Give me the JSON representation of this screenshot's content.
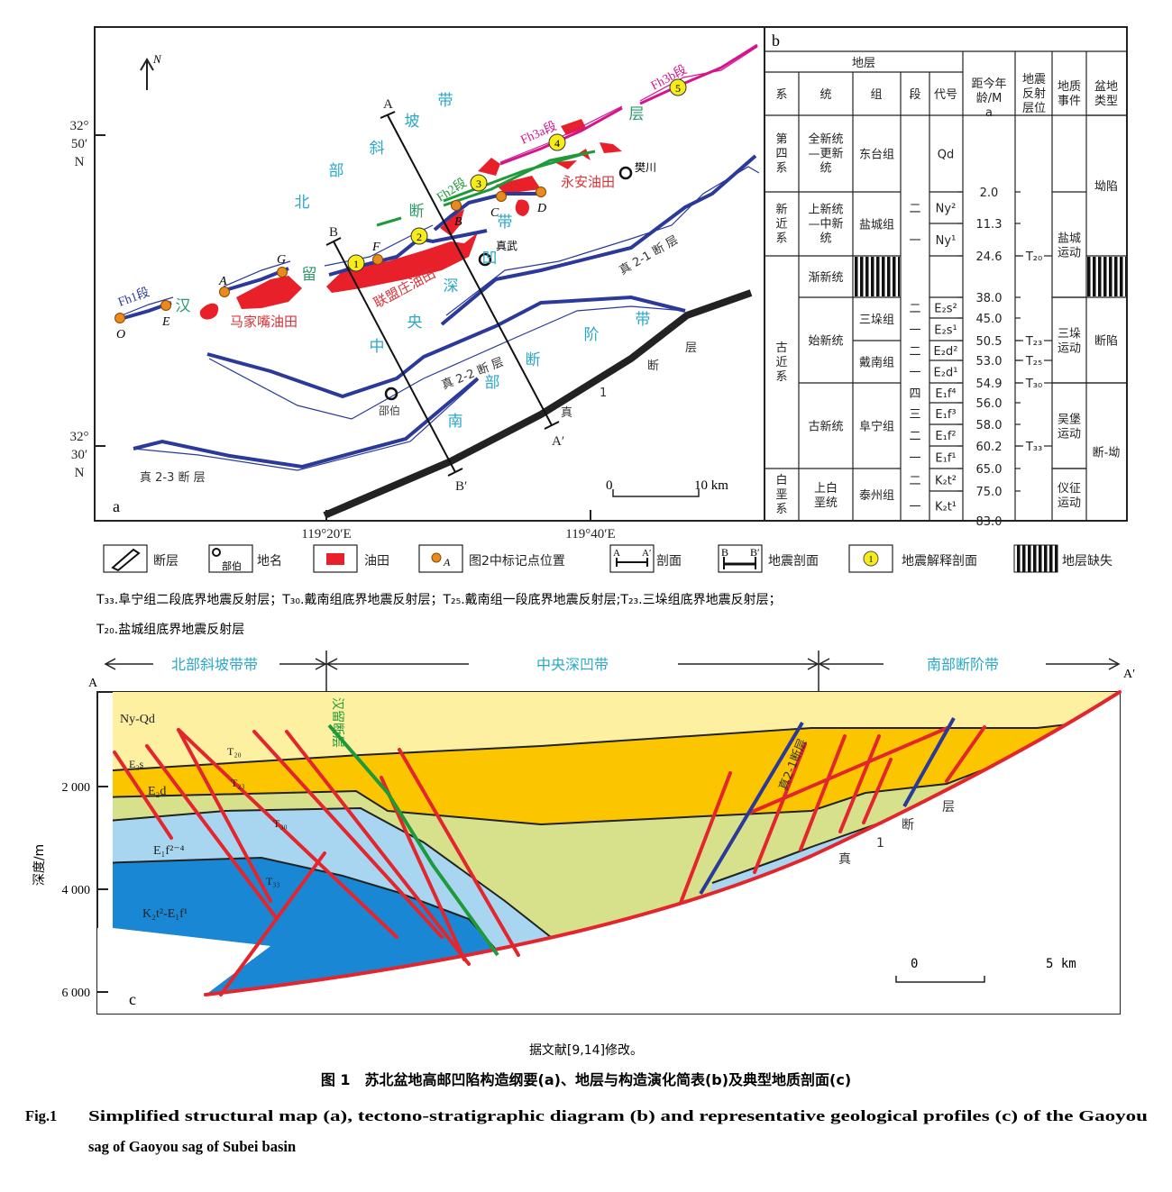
{
  "colors": {
    "fault_blue": "#2b3a9a",
    "oil_red": "#e8202a",
    "zone_cyan": "#2aa7c9",
    "hanliu_green": "#2a9a6a",
    "fh3_magenta": "#d4148c",
    "marker_orange": "#e88a1e",
    "marker_yellow": "#f5ec1a",
    "layer_yellow": "#fdf0a0",
    "layer_orange": "#fbc600",
    "layer_green": "#d7e08a",
    "layer_lightblue": "#a8d6f0",
    "layer_darkblue": "#1a87d4"
  },
  "map": {
    "panel_label": "a",
    "north": "N",
    "lat_top": [
      "32°",
      "50′",
      "N"
    ],
    "lat_bottom": [
      "32°",
      "30′",
      "N"
    ],
    "lon_left": "119°20′E",
    "lon_right": "119°40′E",
    "scale_zero": "0",
    "scale_end": "10 km",
    "zone_north": [
      "北",
      "部",
      "斜",
      "坡",
      "带"
    ],
    "zone_central": [
      "中",
      "央",
      "深",
      "凹",
      "带"
    ],
    "zone_south": [
      "南",
      "部",
      "断",
      "阶",
      "带"
    ],
    "hanliu": [
      "汉",
      "留",
      "断",
      "层"
    ],
    "segments": {
      "fh1": "Fh1段",
      "fh2": "Fh2段",
      "fh3a": "Fh3a段",
      "fh3b": "Fh3b段"
    },
    "oilfields": {
      "majiazui": "马家嘴油田",
      "lianmengzhuang": "联盟庄油田",
      "yongan": "永安油田"
    },
    "places": {
      "fanchuan": "樊川",
      "zhenwu": "真武",
      "shaobo": "邵伯"
    },
    "faults": {
      "z21": "真 2-1 断 层",
      "z22": "真 2-2 断 层",
      "z23": "真 2-3 断 层",
      "z1": [
        "真",
        "1",
        "断",
        "层"
      ]
    },
    "points": [
      "O",
      "E",
      "A",
      "G",
      "F",
      "B",
      "C",
      "D"
    ],
    "seismic_numbers": [
      "1",
      "2",
      "3",
      "4",
      "5"
    ],
    "profile_a": [
      "A",
      "A′"
    ],
    "profile_b": [
      "B",
      "B′"
    ]
  },
  "table": {
    "panel_label": "b",
    "header_group": "地层",
    "headers": [
      "系",
      "统",
      "组",
      "段",
      "代号",
      "距今年龄/Ma",
      "地震反射层位",
      "地质事件",
      "盆地类型"
    ],
    "system": [
      "第四系",
      "新近系",
      "古近系",
      "白垩系"
    ],
    "series": [
      "全新统—更新统",
      "上新统—中新统",
      "渐新统",
      "始新统",
      "古新统",
      "上白垩统"
    ],
    "formation": [
      "东台组",
      "盐城组",
      "三垛组",
      "戴南组",
      "阜宁组",
      "泰州组"
    ],
    "members": [
      "",
      "二",
      "一",
      "",
      "二",
      "一",
      "二",
      "一",
      "四",
      "三",
      "二",
      "一",
      "二",
      "一"
    ],
    "codes": [
      "Qd",
      "Ny²",
      "Ny¹",
      "",
      "E₂s²",
      "E₂s¹",
      "E₂d²",
      "E₂d¹",
      "E₁f⁴",
      "E₁f³",
      "E₁f²",
      "E₁f¹",
      "K₂t²",
      "K₂t¹"
    ],
    "ages": [
      "2.0",
      "11.3",
      "24.6",
      "38.0",
      "45.0",
      "50.5",
      "53.0",
      "54.9",
      "56.0",
      "58.0",
      "60.2",
      "65.0",
      "75.0",
      "83.0"
    ],
    "reflectors": [
      "T₂₀",
      "T₂₃",
      "T₂₅",
      "T₃₀",
      "T₃₃"
    ],
    "events": [
      "盐城运动",
      "三垛运动",
      "吴堡运动",
      "仪征运动"
    ],
    "basin_types": [
      "坳陷",
      "断陷",
      "断-坳"
    ]
  },
  "legend": {
    "items": [
      "断层",
      "地名",
      "油田",
      "图2中标记点位置",
      "剖面",
      "地震剖面",
      "地震解释剖面",
      "地层缺失"
    ],
    "place_sample": "部伯",
    "point_sample": "A",
    "profile_sample": [
      "A",
      "A′"
    ],
    "seismic_sample": [
      "B",
      "B′"
    ],
    "circle_sample": "1",
    "notes": [
      "T₃₃.阜宁组二段底界地震反射层；T₃₀.戴南组底界地震反射层；T₂₅.戴南组一段底界地震反射层;T₂₃.三垛组底界地震反射层；",
      "T₂₀.盐城组底界地震反射层"
    ]
  },
  "section": {
    "panel_label": "c",
    "ends": [
      "A",
      "A′"
    ],
    "zones": [
      "北部斜坡带带",
      "中央深凹带",
      "南部断阶带"
    ],
    "ylabel": "深度/m",
    "yticks": [
      "2 000",
      "4 000",
      "6 000"
    ],
    "layers": [
      "Ny-Qd",
      "E₂s",
      "E₂d",
      "E₁f²⁻⁴",
      "K₂t²-E₁f¹"
    ],
    "reflectors": [
      "T₂₀",
      "T₂₃",
      "T₃₀",
      "T₃₃"
    ],
    "hanliu": "汉留断层",
    "z21": "真2-1断层",
    "z1": [
      "真",
      "1",
      "断",
      "层"
    ],
    "scale_zero": "0",
    "scale_end": "5 km"
  },
  "caption": {
    "source": "据文献[9,14]修改。",
    "cn": "图 1　苏北盆地高邮凹陷构造纲要(a)、地层与构造演化简表(b)及典型地质剖面(c)",
    "en_label": "Fig.1",
    "en_line1": "Simplified structural map (a), tectono-stratigraphic diagram (b) and representative geological profiles (c) of the Gaoyou",
    "en_line2": "sag of Gaoyou sag of Subei basin"
  }
}
